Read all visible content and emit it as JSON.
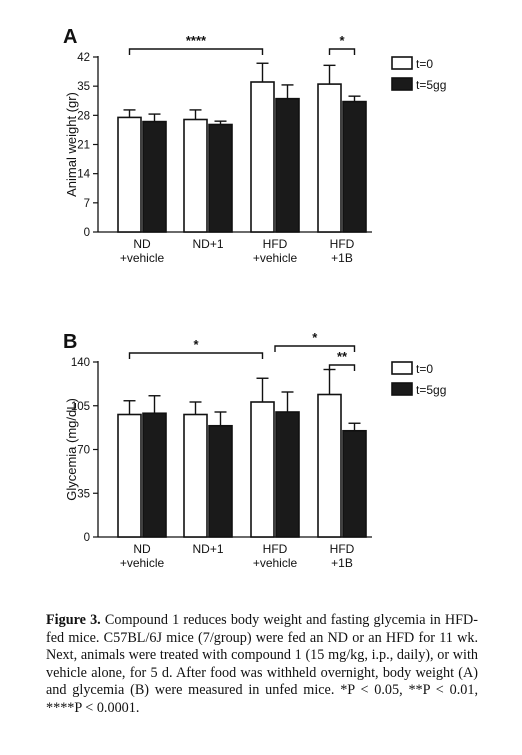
{
  "caption": {
    "label": "Figure 3.",
    "text": "Compound 1 reduces body weight and fasting glycemia in HFD-fed mice. C57BL/6J mice (7/group) were fed an ND or an HFD for 11 wk. Next, animals were treated with compound 1 (15 mg/kg, i.p., daily), or with vehicle alone, for 5 d. After food was withheld overnight, body weight (A) and glycemia (B) were measured in unfed mice. *P < 0.05, **P < 0.01, ****P < 0.0001."
  },
  "colors": {
    "t0": "#ffffff",
    "t5": "#1a1a1a",
    "stroke": "#111111"
  },
  "chart_data": [
    {
      "type": "bar",
      "panel_label": "A",
      "ylabel": "Animal weight (gr)",
      "categories": [
        [
          "ND",
          "+vehicle"
        ],
        [
          "ND+1"
        ],
        [
          "HFD",
          "+vehicle"
        ],
        [
          "HFD",
          "+1B"
        ]
      ],
      "yticks": [
        0,
        7,
        14,
        21,
        28,
        35,
        42
      ],
      "ylim": [
        0,
        42
      ],
      "series": [
        {
          "name": "t=0",
          "values": [
            27.5,
            27,
            36,
            35.5
          ],
          "errors": [
            1.8,
            2.3,
            4.5,
            4.5
          ]
        },
        {
          "name": "t=5gg",
          "values": [
            26.5,
            25.8,
            32,
            31.3
          ],
          "errors": [
            1.8,
            0.8,
            3.3,
            1.3
          ]
        }
      ],
      "legend_position": "top-right",
      "annotations": [
        {
          "from": 0,
          "to": 2,
          "text": "****"
        },
        {
          "from": 3,
          "to": 3,
          "text": "*"
        }
      ]
    },
    {
      "type": "bar",
      "panel_label": "B",
      "ylabel": "Glycemia (mg/dL)",
      "categories": [
        [
          "ND",
          "+vehicle"
        ],
        [
          "ND+1"
        ],
        [
          "HFD",
          "+vehicle"
        ],
        [
          "HFD",
          "+1B"
        ]
      ],
      "yticks": [
        0,
        35,
        70,
        105,
        140
      ],
      "ylim": [
        0,
        140
      ],
      "series": [
        {
          "name": "t=0",
          "values": [
            98,
            98,
            108,
            114
          ],
          "errors": [
            11,
            10,
            19,
            20
          ]
        },
        {
          "name": "t=5gg",
          "values": [
            99,
            89,
            100,
            85
          ],
          "errors": [
            14,
            11,
            16,
            6
          ]
        }
      ],
      "legend_position": "top-right",
      "annotations": [
        {
          "from": 0,
          "to": 2,
          "text": "*"
        },
        {
          "from": 2,
          "to": 3,
          "text": "*"
        },
        {
          "from": 3,
          "to": 3,
          "text": "**"
        }
      ]
    }
  ]
}
